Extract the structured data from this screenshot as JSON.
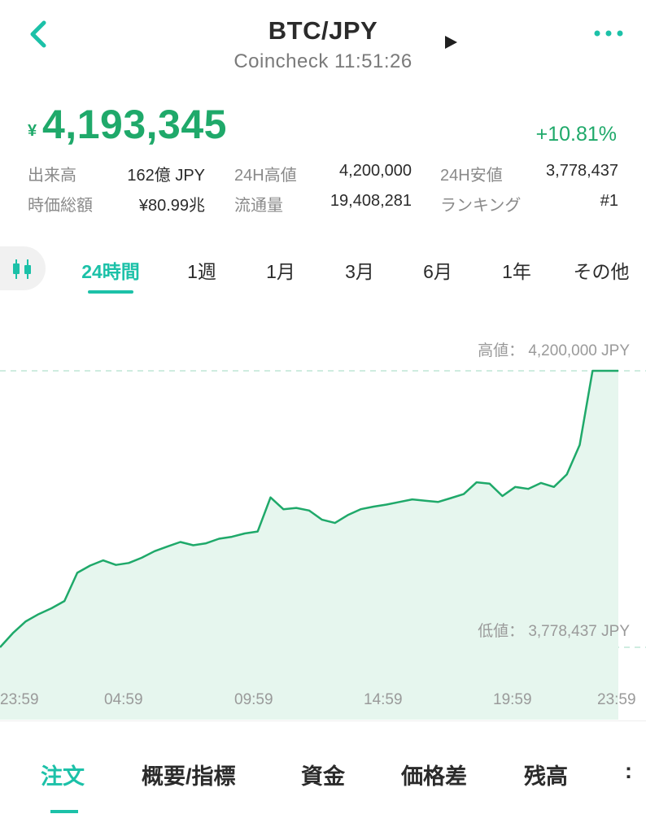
{
  "header": {
    "title": "BTC/JPY",
    "exchange": "Coincheck",
    "time": "11:51:26",
    "subtitle": "Coincheck 11:51:26",
    "back_icon": "chevron-left-icon",
    "play_icon": "play-icon",
    "more_icon": "more-dots-icon",
    "accent_color": "#1cc1a8"
  },
  "price": {
    "currency_mark": "¥",
    "value": "4,193,345",
    "change": "+10.81%",
    "color": "#1fa96a"
  },
  "stats": [
    {
      "label": "出来高",
      "value": "162億 JPY"
    },
    {
      "label": "24H高値",
      "value": "4,200,000"
    },
    {
      "label": "24H安値",
      "value": "3,778,437"
    },
    {
      "label": "時価総額",
      "value": "¥80.99兆"
    },
    {
      "label": "流通量",
      "value": "19,408,281"
    },
    {
      "label": "ランキング",
      "value": "#1"
    }
  ],
  "range_tabs": [
    "24時間",
    "1週",
    "1月",
    "3月",
    "6月",
    "1年",
    "その他"
  ],
  "range_tabs_active": "24時間",
  "chart_data": {
    "type": "area",
    "color": "#1fa96a",
    "fill": "#e6f6ee",
    "high_label": "高値： 4,200,000 JPY",
    "low_label": "低値： 3,778,437 JPY",
    "x_ticks": [
      "23:59",
      "04:59",
      "09:59",
      "14:59",
      "19:59",
      "23:59"
    ],
    "ylim": [
      3778437,
      4200000
    ],
    "x_hours": [
      0,
      0.5,
      1,
      1.5,
      2,
      2.5,
      3,
      3.5,
      4,
      4.5,
      5,
      5.5,
      6,
      6.5,
      7,
      7.5,
      8,
      8.5,
      9,
      9.5,
      10,
      10.5,
      11,
      11.5,
      12,
      12.5,
      13,
      13.5,
      14,
      14.5,
      15,
      15.5,
      16,
      16.5,
      17,
      17.5,
      18,
      18.5,
      19,
      19.5,
      20,
      20.5,
      21,
      21.5,
      22,
      22.5,
      23,
      23.5,
      24
    ],
    "values": [
      3778437,
      3800000,
      3818000,
      3829000,
      3838000,
      3849000,
      3892000,
      3903000,
      3911000,
      3904000,
      3907000,
      3915000,
      3925000,
      3932000,
      3939000,
      3934000,
      3937000,
      3944000,
      3947000,
      3952000,
      3955000,
      4007000,
      3989000,
      3991000,
      3987000,
      3973000,
      3968000,
      3980000,
      3989000,
      3993000,
      3996000,
      4000000,
      4004000,
      4002000,
      4000000,
      4006000,
      4012000,
      4030000,
      4028000,
      4009000,
      4023000,
      4020000,
      4029000,
      4023000,
      4042000,
      4087000,
      4200000,
      4200000,
      4200000
    ]
  },
  "bottom_tabs": [
    "注文",
    "概要/指標",
    "資金",
    "価格差",
    "残高",
    ":"
  ],
  "bottom_tabs_active": "注文"
}
